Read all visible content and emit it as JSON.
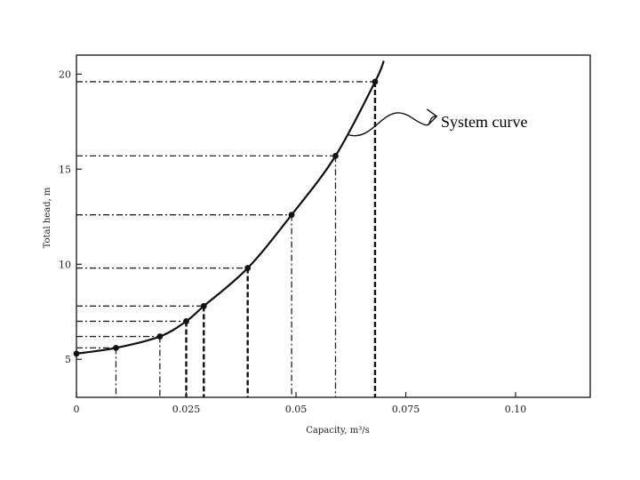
{
  "chart_data": {
    "type": "line",
    "title": "",
    "xlabel": "Capacity, m³/s",
    "ylabel": "Total head, m",
    "xlim": [
      0,
      0.117
    ],
    "ylim": [
      3,
      21
    ],
    "x_ticks": [
      {
        "value": 0,
        "label": "0"
      },
      {
        "value": 0.025,
        "label": "0.025"
      },
      {
        "value": 0.05,
        "label": "0.05"
      },
      {
        "value": 0.075,
        "label": "0.075"
      },
      {
        "value": 0.1,
        "label": "0.10"
      }
    ],
    "y_ticks": [
      {
        "value": 5,
        "label": "5"
      },
      {
        "value": 10,
        "label": "10"
      },
      {
        "value": 15,
        "label": "15"
      },
      {
        "value": 20,
        "label": "20"
      }
    ],
    "grid": false,
    "series": [
      {
        "name": "System curve",
        "x": [
          0,
          0.009,
          0.019,
          0.025,
          0.029,
          0.039,
          0.049,
          0.059,
          0.068
        ],
        "y": [
          5.3,
          5.6,
          6.2,
          7.0,
          7.8,
          9.8,
          12.6,
          15.7,
          19.6
        ]
      }
    ],
    "curve_extension": {
      "x": 0.07,
      "y": 20.7
    },
    "annotations": [
      {
        "text": "System curve",
        "points_to": {
          "x": 0.062,
          "y": 16.8
        }
      }
    ]
  }
}
